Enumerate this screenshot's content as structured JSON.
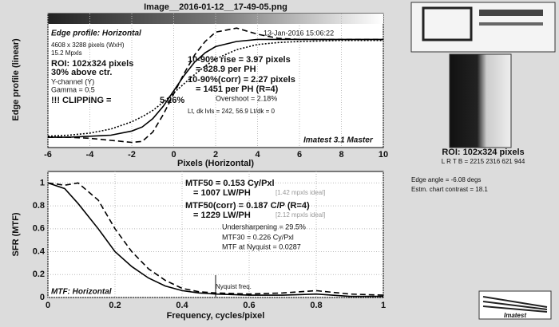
{
  "title": "Image__2016-01-12__17-49-05.png",
  "chart_data": [
    {
      "type": "line",
      "xlabel": "Pixels (Horizontal)",
      "ylabel": "Edge profile (linear)",
      "xlim": [
        -6,
        10
      ],
      "xticks": [
        -6,
        -4,
        -2,
        0,
        2,
        4,
        6,
        8,
        10
      ],
      "ylim": [
        0,
        1.2
      ],
      "grid": true,
      "x": [
        -6,
        -5,
        -4,
        -3,
        -2,
        -1.5,
        -1,
        -0.5,
        0,
        0.5,
        1,
        1.5,
        2,
        3,
        4,
        5,
        6,
        8,
        10
      ],
      "series": [
        {
          "color": "#000000",
          "style": "solid",
          "values": [
            0.1,
            0.1,
            0.11,
            0.12,
            0.16,
            0.2,
            0.28,
            0.4,
            0.55,
            0.7,
            0.83,
            0.92,
            0.98,
            1.03,
            1.05,
            1.05,
            1.05,
            1.05,
            1.05
          ]
        },
        {
          "color": "#000000",
          "style": "dashed",
          "values": [
            0.1,
            0.1,
            0.09,
            0.07,
            0.05,
            0.06,
            0.15,
            0.32,
            0.52,
            0.72,
            0.9,
            1.03,
            1.12,
            1.16,
            1.1,
            1.06,
            1.05,
            1.05,
            1.05
          ]
        },
        {
          "color": "#000000",
          "style": "dotted",
          "values": [
            0.11,
            0.12,
            0.14,
            0.18,
            0.25,
            0.3,
            0.36,
            0.44,
            0.53,
            0.62,
            0.71,
            0.79,
            0.86,
            0.95,
            1.0,
            1.02,
            1.03,
            1.04,
            1.04
          ]
        }
      ],
      "annotations": [
        "Edge profile: Horizontal",
        "13-Jan-2016 15:06:22",
        "4608 x 3288 pixels (WxH)",
        "15.2 Mpxls",
        "ROI:  102x324 pixels",
        "30% above ctr.",
        "Y-channel (Y)",
        "Gamma = 0.5",
        "!!! CLIPPING =",
        "5.26%",
        "10-90% rise = 3.97 pixels",
        "= 828.9 per PH",
        "10-90%(corr) = 2.27 pixels",
        "= 1451 per PH   (R=4)",
        "Overshoot = 2.18%",
        "Lt, dk lvls = 242, 56.9   Lt/dk = 0",
        "Imatest 3.1 Master"
      ]
    },
    {
      "type": "line",
      "xlabel": "Frequency, cycles/pixel",
      "ylabel": "SFR (MTF)",
      "xlim": [
        0,
        1
      ],
      "xticks": [
        0,
        0.2,
        0.4,
        0.6,
        0.8,
        1
      ],
      "ylim": [
        0,
        1.1
      ],
      "yticks": [
        0,
        0.2,
        0.4,
        0.6,
        0.8,
        1
      ],
      "grid": true,
      "x": [
        0,
        0.05,
        0.09,
        0.15,
        0.2,
        0.25,
        0.3,
        0.35,
        0.4,
        0.45,
        0.5,
        0.6,
        0.7,
        0.8,
        0.9,
        1
      ],
      "series": [
        {
          "color": "#000000",
          "style": "solid",
          "values": [
            1,
            0.95,
            0.82,
            0.6,
            0.4,
            0.27,
            0.17,
            0.1,
            0.06,
            0.04,
            0.03,
            0.02,
            0.02,
            0.03,
            0.01,
            0.01
          ]
        },
        {
          "color": "#000000",
          "style": "dashed",
          "values": [
            1,
            0.98,
            1,
            0.85,
            0.6,
            0.4,
            0.25,
            0.15,
            0.08,
            0.05,
            0.04,
            0.03,
            0.04,
            0.06,
            0.03,
            0.02
          ]
        }
      ],
      "nyquist_x": 0.5,
      "annotations": [
        "MTF50 = 0.153 Cy/Pxl",
        "= 1007 LW/PH",
        "[1.42 mpxls ideal]",
        "MTF50(corr) = 0.187 C/P  (R=4)",
        "= 1229 LW/PH",
        "[2.12 mpxls ideal]",
        "Undersharpening = 29.5%",
        "MTF30 = 0.226 Cy/Pxl",
        "MTF at Nyquist = 0.0287",
        "Nyquist freq.",
        "MTF: Horizontal"
      ]
    }
  ],
  "side_panel": {
    "roi": "ROI:  102x324 pixels",
    "lrtb": "L R  T B = 2215 2316  621 944",
    "edge_angle": "Edge angle = -6.08 degs",
    "contrast": "Estm. chart contrast = 18.1",
    "logo": "Imatest"
  }
}
